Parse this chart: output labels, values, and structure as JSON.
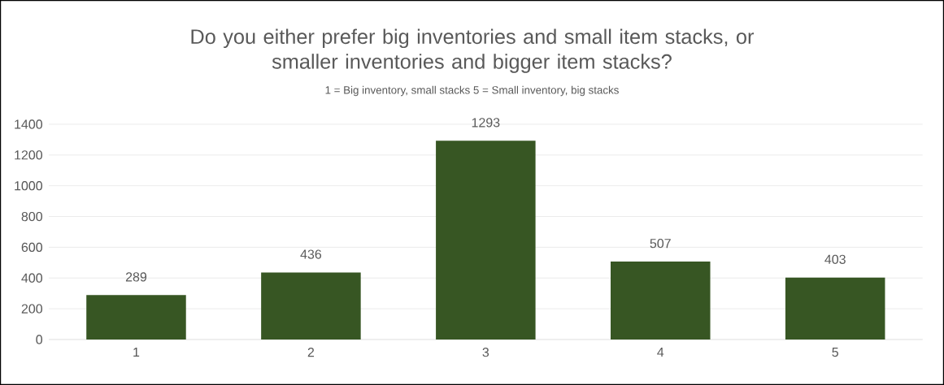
{
  "chart_data": {
    "type": "bar",
    "title": "Do you either prefer big inventories and small item stacks, or\nsmaller inventories and bigger item stacks?",
    "subtitle": "1 = Big inventory, small stacks    5 = Small inventory, big stacks",
    "categories": [
      "1",
      "2",
      "3",
      "4",
      "5"
    ],
    "values": [
      289,
      436,
      1293,
      507,
      403
    ],
    "color": "#375623",
    "ylim": [
      0,
      1400
    ],
    "yticks": [
      0,
      200,
      400,
      600,
      800,
      1000,
      1200,
      1400
    ],
    "grid": "y",
    "data_labels": true
  }
}
